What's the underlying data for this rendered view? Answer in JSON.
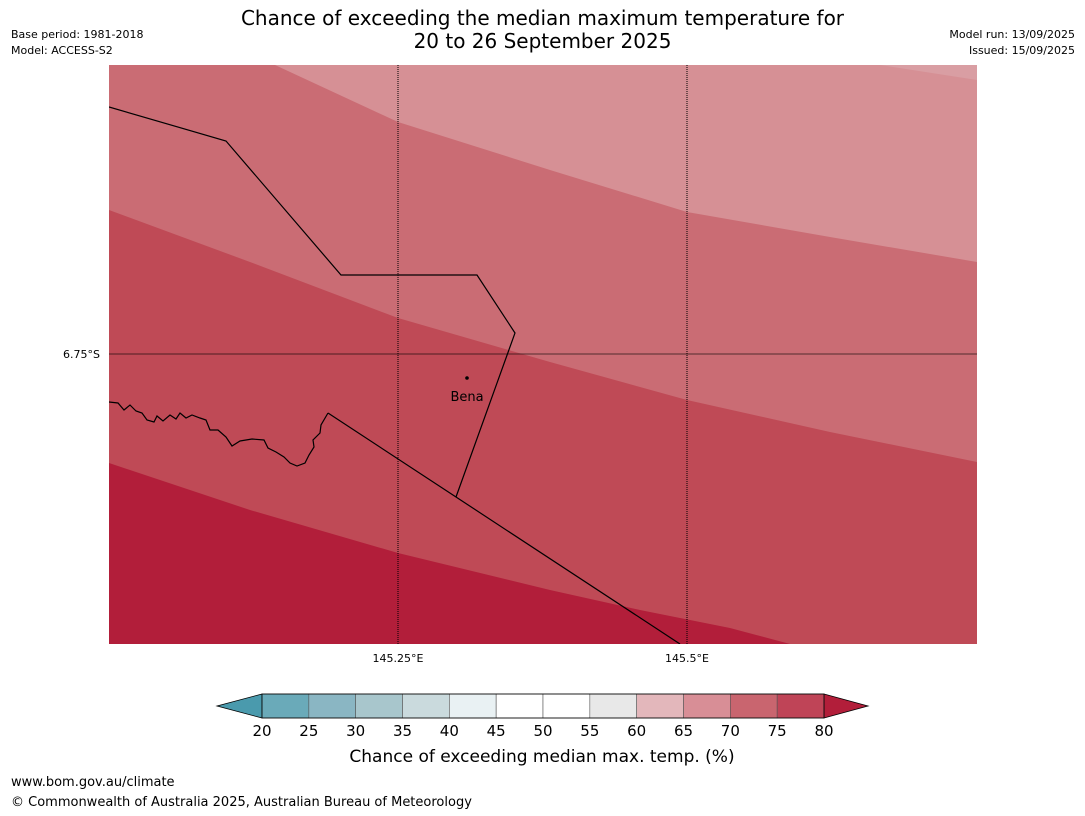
{
  "title_line1": "Chance of exceeding the median maximum temperature for",
  "title_line2": "20 to 26 September 2025",
  "meta": {
    "base_period": "Base period: 1981-2018",
    "model": "Model: ACCESS-S2",
    "model_run": "Model run: 13/09/2025",
    "issued": "Issued: 15/09/2025"
  },
  "map": {
    "lat_label": "6.75°S",
    "lon_labels": [
      "145.25°E",
      "145.5°E"
    ],
    "place": "Bena",
    "band_colors": [
      "#d99ea3",
      "#d69095",
      "#ca6c74",
      "#bf4a56",
      "#b21e3a"
    ]
  },
  "legend": {
    "ticks": [
      "20",
      "25",
      "30",
      "35",
      "40",
      "45",
      "50",
      "55",
      "60",
      "65",
      "70",
      "75",
      "80"
    ],
    "colors": [
      "#6aaab9",
      "#8ab6c3",
      "#a8c6cc",
      "#cadadd",
      "#e9f1f3",
      "#ffffff",
      "#ffffff",
      "#e8e8e8",
      "#e3b7bb",
      "#d88e96",
      "#c9656f",
      "#bf4457"
    ],
    "under_color": "#4a9aad",
    "over_color": "#b21e3a",
    "label": "Chance of exceeding median max. temp. (%)"
  },
  "footer": {
    "url": "www.bom.gov.au/climate",
    "copyright": "© Commonwealth of Australia 2025, Australian Bureau of Meteorology"
  }
}
